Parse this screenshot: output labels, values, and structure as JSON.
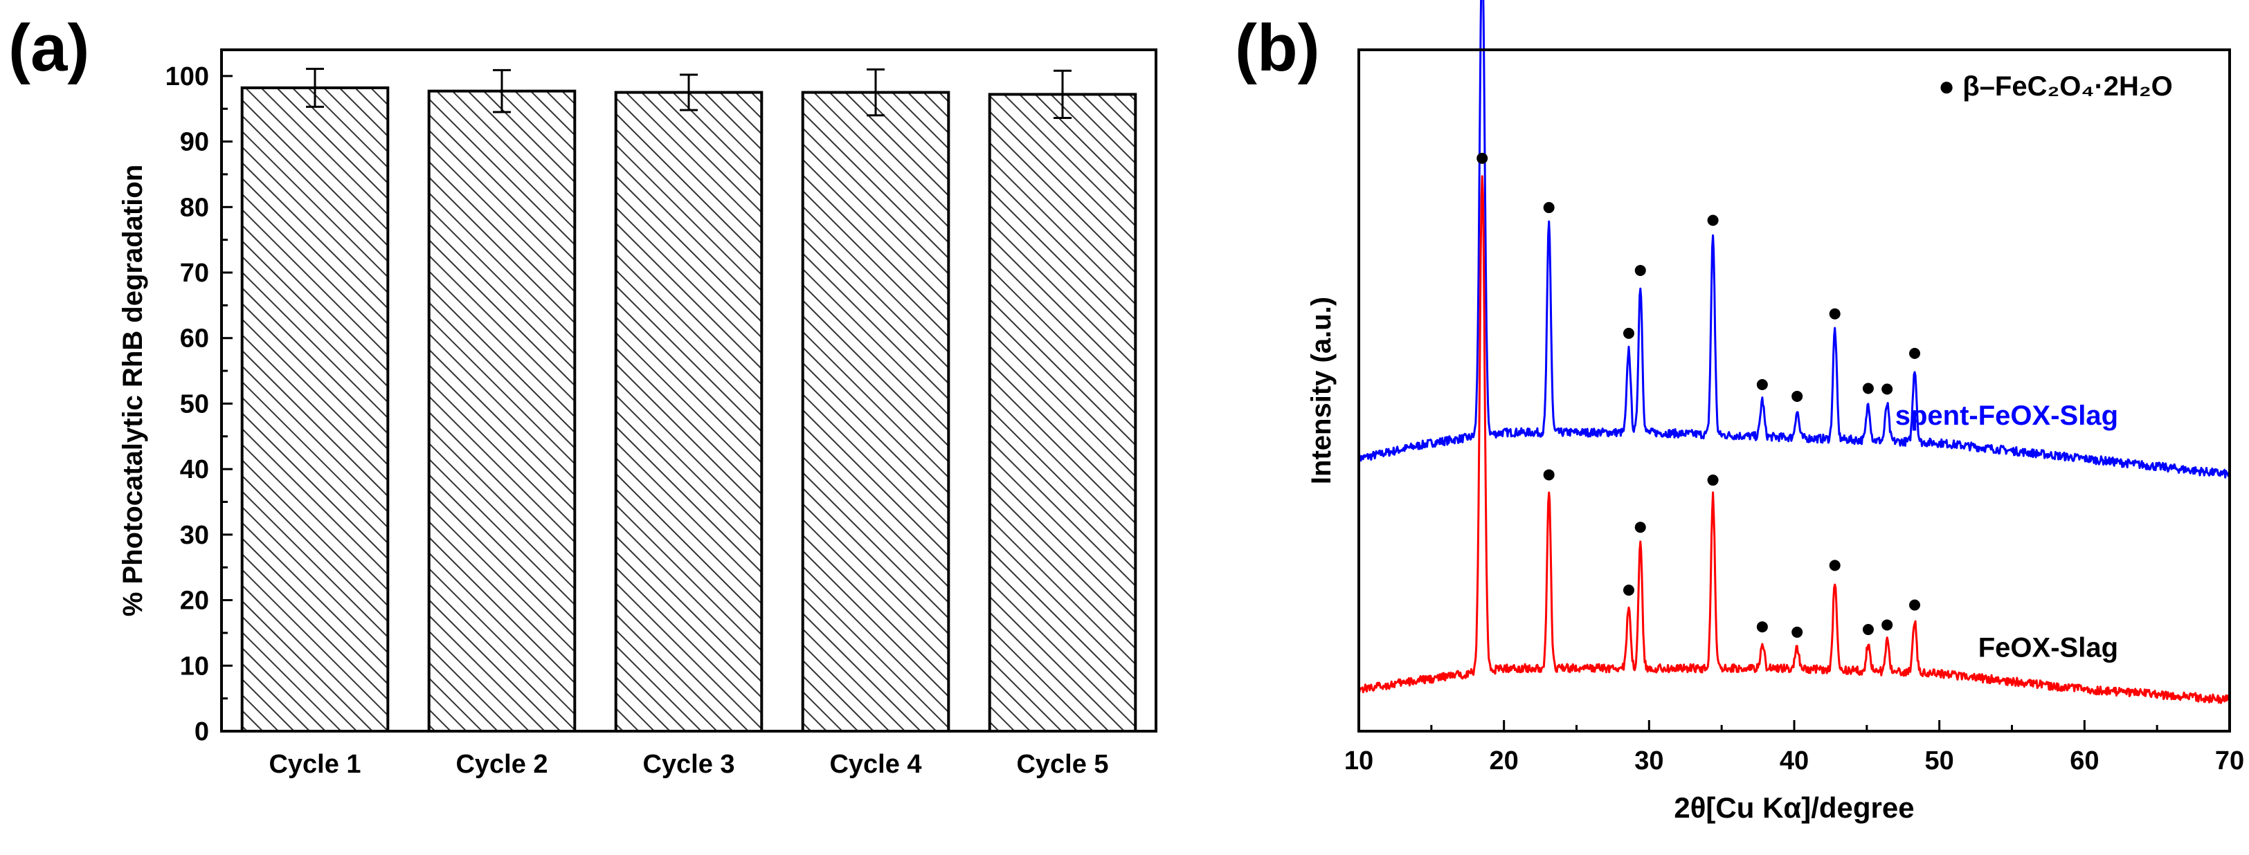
{
  "chart_data": [
    {
      "panel_label": "(a)",
      "type": "bar",
      "categories": [
        "Cycle 1",
        "Cycle 2",
        "Cycle 3",
        "Cycle 4",
        "Cycle 5"
      ],
      "values": [
        98.2,
        97.7,
        97.5,
        97.5,
        97.2
      ],
      "errors": [
        2.9,
        3.2,
        2.7,
        3.5,
        3.6
      ],
      "ylabel": "% Photocatalytic RhB degradation",
      "xlabel": "",
      "ylim": [
        0,
        104
      ],
      "yticks": [
        0,
        10,
        20,
        30,
        40,
        50,
        60,
        70,
        80,
        90,
        100
      ],
      "bar_fill": "hatched",
      "bar_color": "#000000",
      "grid": false
    },
    {
      "panel_label": "(b)",
      "type": "line",
      "xlabel": "2θ[Cu Kα]/degree",
      "ylabel": "Intensity (a.u.)",
      "xlim": [
        10,
        70
      ],
      "xticks": [
        10,
        20,
        30,
        40,
        50,
        60,
        70
      ],
      "yticks_shown": false,
      "grid": false,
      "legend": {
        "marker": "●",
        "label": "β–FeC₂O₄·2H₂O",
        "placement": "top-right"
      },
      "peak_positions_2theta": [
        18.5,
        23.1,
        28.6,
        29.4,
        34.4,
        37.8,
        40.2,
        42.8,
        45.1,
        46.4,
        48.3
      ],
      "series": [
        {
          "name": "spent-FeOX-Slag",
          "color": "#0000ff",
          "baseline_intensity": [
            [
              10,
              52
            ],
            [
              15,
              55
            ],
            [
              20,
              57
            ],
            [
              25,
              57
            ],
            [
              30,
              57
            ],
            [
              40,
              56
            ],
            [
              50,
              55
            ],
            [
              60,
              52
            ],
            [
              70,
              49
            ]
          ],
          "peak_heights": [
            93,
            40,
            16,
            28,
            38,
            7,
            5,
            21,
            7,
            7,
            14
          ],
          "markers_2theta": [
            18.5,
            23.1,
            28.6,
            29.4,
            34.4,
            37.8,
            40.2,
            42.8,
            45.1,
            46.4,
            48.3
          ]
        },
        {
          "name": "FeOX-Slag",
          "color": "#ff0000",
          "baseline_intensity": [
            [
              10,
              8
            ],
            [
              15,
              10
            ],
            [
              20,
              12
            ],
            [
              25,
              12
            ],
            [
              30,
              12
            ],
            [
              40,
              12
            ],
            [
              50,
              11
            ],
            [
              60,
              8
            ],
            [
              70,
              6
            ]
          ],
          "peak_heights": [
            95,
            34,
            12,
            24,
            33,
            5,
            4,
            17,
            5,
            6,
            10
          ],
          "markers_2theta": [
            18.5,
            23.1,
            28.6,
            29.4,
            34.4,
            37.8,
            40.2,
            42.8,
            45.1,
            46.4,
            48.3
          ]
        }
      ]
    }
  ]
}
